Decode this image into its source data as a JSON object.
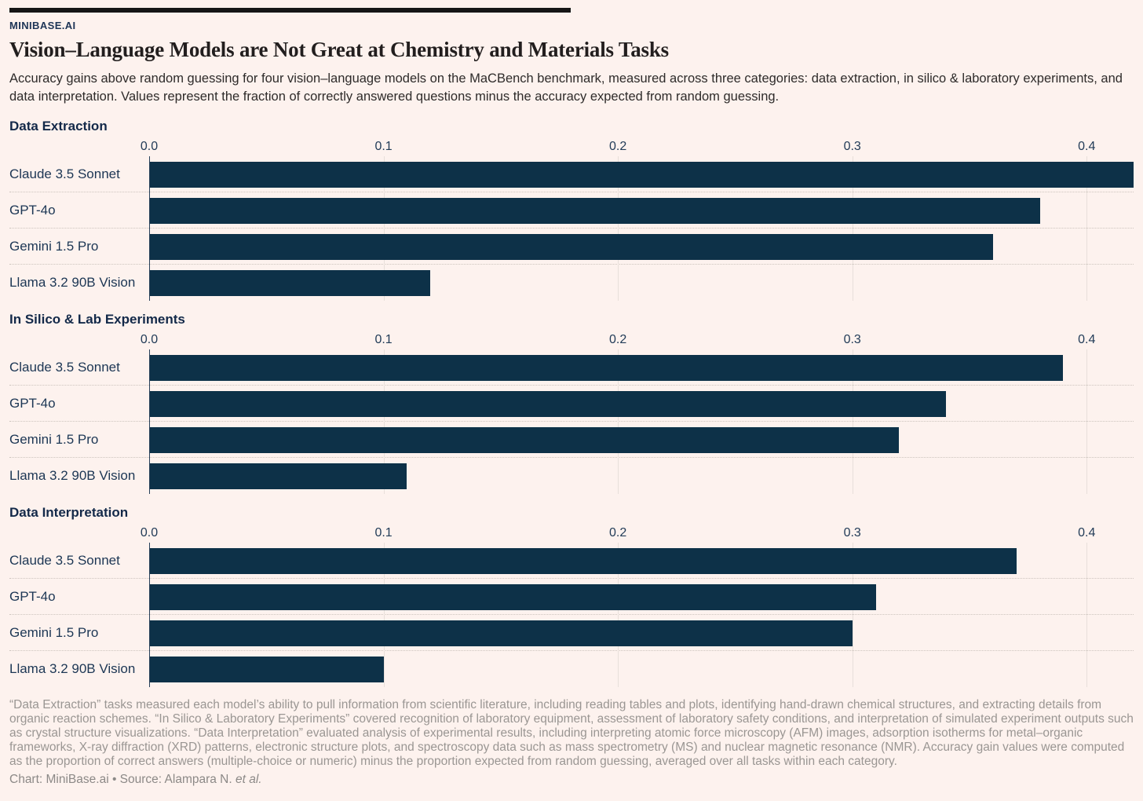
{
  "header": {
    "brand": "MINIBASE.AI",
    "title": "Vision–Language Models are Not Great at Chemistry and Materials Tasks",
    "subtitle": "Accuracy gains above random guessing for four vision–language models on the MaCBench benchmark, measured across three categories: data extraction, in silico & laboratory experiments, and data interpretation. Values represent the fraction of correctly answered questions minus the accuracy expected from random guessing."
  },
  "chart_data": {
    "type": "bar",
    "orientation": "horizontal",
    "categories": [
      "Claude 3.5 Sonnet",
      "GPT-4o",
      "Gemini 1.5 Pro",
      "Llama 3.2 90B Vision"
    ],
    "sections": [
      {
        "title": "Data Extraction",
        "values": [
          0.42,
          0.38,
          0.36,
          0.12
        ]
      },
      {
        "title": "In Silico & Lab Experiments",
        "values": [
          0.39,
          0.34,
          0.32,
          0.11
        ]
      },
      {
        "title": "Data Interpretation",
        "values": [
          0.37,
          0.31,
          0.3,
          0.1
        ]
      }
    ],
    "axis": {
      "max": 0.42,
      "ticks": [
        {
          "label": "0.0",
          "value": 0.0
        },
        {
          "label": "0.1",
          "value": 0.1
        },
        {
          "label": "0.2",
          "value": 0.2
        },
        {
          "label": "0.3",
          "value": 0.3
        },
        {
          "label": "0.4",
          "value": 0.4
        }
      ]
    },
    "xlabel": "",
    "ylabel": "",
    "grid": true,
    "legend": false
  },
  "colors": {
    "bar": "#0d3148",
    "background": "#fdf2ee",
    "accent_navy": "#1d3456",
    "grid_line": "#e8dfda",
    "dotted_separator": "#cdc4be",
    "footnote_gray": "#9a9693"
  },
  "footer": {
    "note": "“Data Extraction” tasks measured each model’s ability to pull information from scientific literature, including reading tables and plots, identifying hand-drawn chemical structures, and extracting details from organic reaction schemes. “In Silico & Laboratory Experiments” covered recognition of laboratory equipment, assessment of laboratory safety conditions, and interpretation of simulated experiment outputs such as crystal structure visualizations. “Data Interpretation” evaluated analysis of experimental results, including interpreting atomic force microscopy (AFM) images, adsorption isotherms for metal–organic frameworks, X-ray diffraction (XRD) patterns, electronic structure plots, and spectroscopy data such as mass spectrometry (MS) and nuclear magnetic resonance (NMR). Accuracy gain values were computed as the proportion of correct answers (multiple-choice or numeric) minus the proportion expected from random guessing, averaged over all tasks within each category.",
    "credit_prefix": "Chart: MiniBase.ai • Source: Alampara N. ",
    "credit_italic": "et al."
  }
}
